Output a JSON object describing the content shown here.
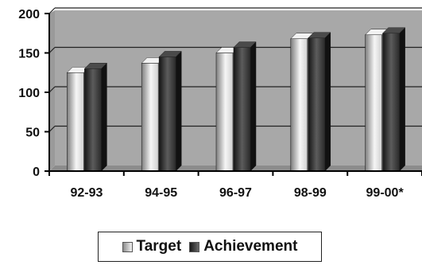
{
  "chart_data": {
    "type": "bar",
    "categories": [
      "92-93",
      "94-95",
      "96-97",
      "98-99",
      "99-00*"
    ],
    "series": [
      {
        "name": "Target",
        "values": [
          125,
          137,
          150,
          168,
          173
        ]
      },
      {
        "name": "Achievement",
        "values": [
          130,
          145,
          157,
          169,
          175
        ]
      }
    ],
    "ylim": [
      0,
      200
    ],
    "yticks": [
      0,
      50,
      100,
      150,
      200
    ],
    "grid": true,
    "legend": "bottom",
    "colors": {
      "plot_bg": "#a8a8a8",
      "target": "#e6e6e6",
      "achievement": "#3a3a3a"
    }
  },
  "legend": {
    "target_label": "Target",
    "achievement_label": "Achievement"
  }
}
